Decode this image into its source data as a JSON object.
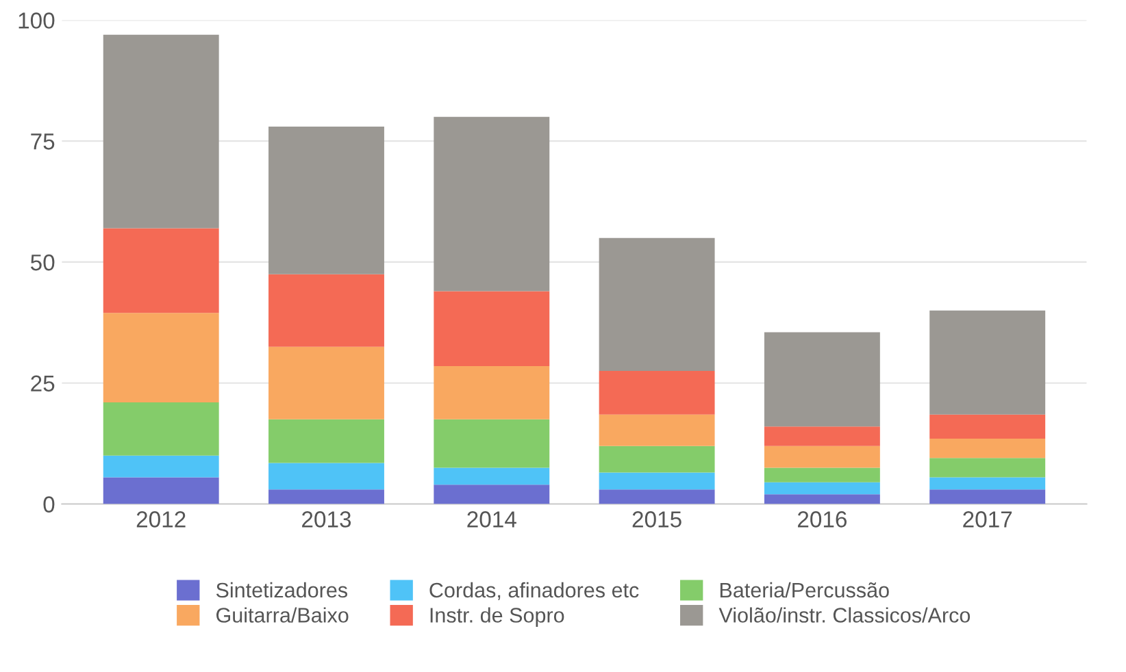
{
  "chart_data": {
    "type": "bar",
    "stacked": true,
    "categories": [
      "2012",
      "2013",
      "2014",
      "2015",
      "2016",
      "2017"
    ],
    "series": [
      {
        "name": "Sintetizadores",
        "color": "#6b6fd0",
        "values": [
          5.5,
          3,
          4,
          3,
          2,
          3
        ]
      },
      {
        "name": "Cordas, afinadores etc",
        "color": "#4fc3f7",
        "values": [
          4.5,
          5.5,
          3.5,
          3.5,
          2.5,
          2.5
        ]
      },
      {
        "name": "Bateria/Percussão",
        "color": "#84cc6a",
        "values": [
          11,
          9,
          10,
          5.5,
          3,
          4
        ]
      },
      {
        "name": "Guitarra/Baixo",
        "color": "#f9a860",
        "values": [
          18.5,
          15,
          11,
          6.5,
          4.5,
          4
        ]
      },
      {
        "name": "Instr. de Sopro",
        "color": "#f46a55",
        "values": [
          17.5,
          15,
          15.5,
          9,
          4,
          5
        ]
      },
      {
        "name": "Violão/instr. Classicos/Arco",
        "color": "#9b9893",
        "values": [
          40,
          30.5,
          36,
          27.5,
          19.5,
          21.5
        ]
      }
    ],
    "ylim": [
      0,
      100
    ],
    "yticks": [
      0,
      25,
      50,
      75,
      100
    ],
    "grid": "y",
    "legend": "bottom"
  }
}
